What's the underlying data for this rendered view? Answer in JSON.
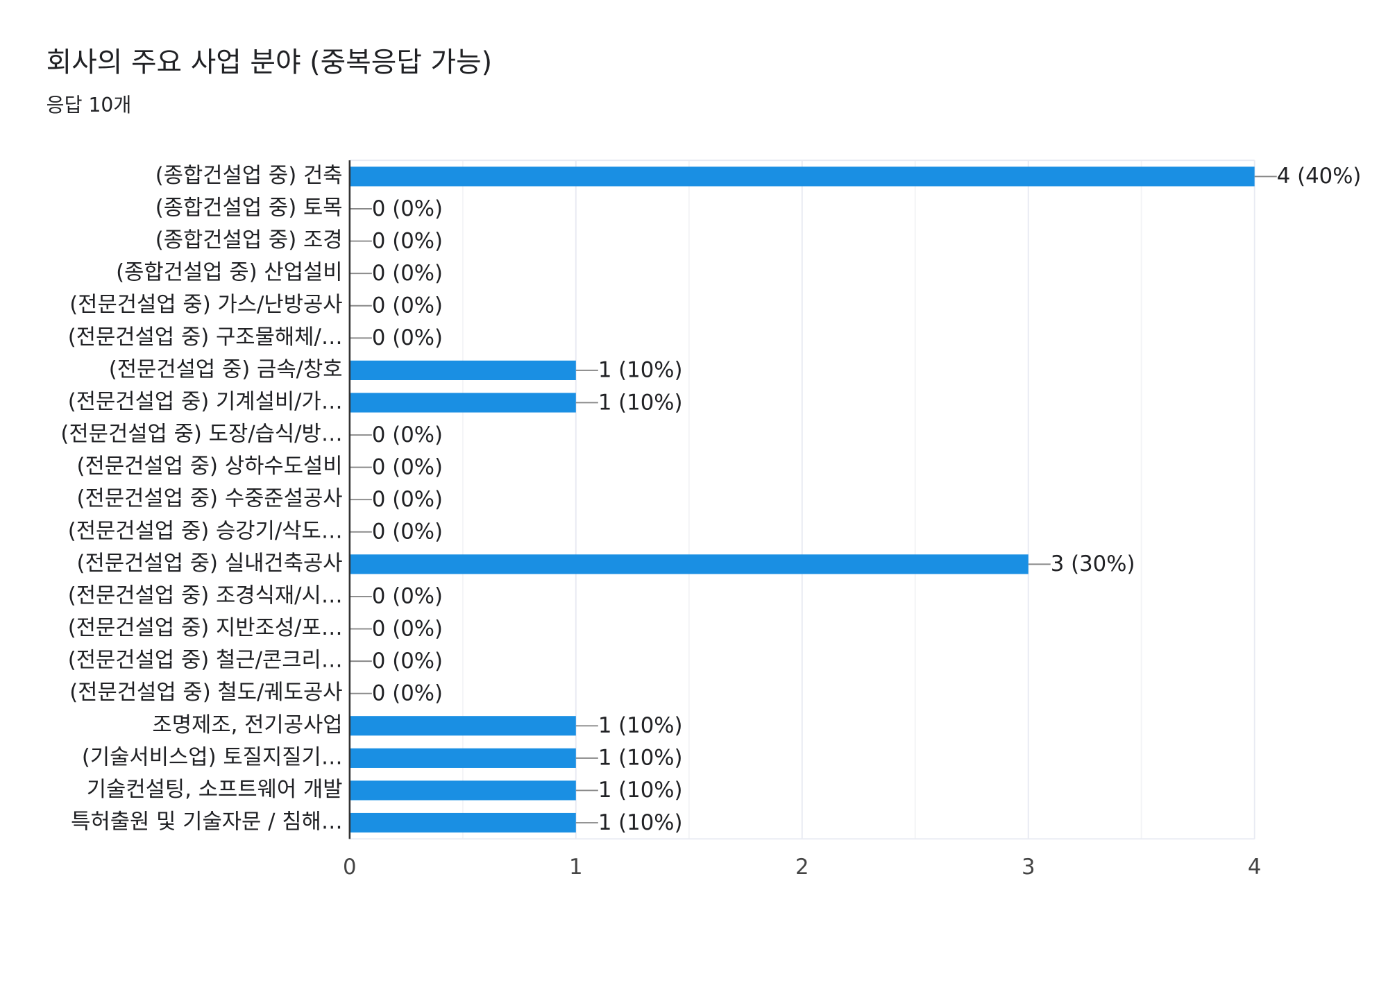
{
  "chart_data": {
    "type": "bar",
    "horizontal": true,
    "title": "회사의 주요 사업 분야 (중복응답 가능)",
    "subtitle": "응답 10개",
    "categories": [
      "(종합건설업 중) 건축",
      "(종합건설업 중) 토목",
      "(종합건설업 중) 조경",
      "(종합건설업 중) 산업설비",
      "(전문건설업 중) 가스/난방공사",
      "(전문건설업 중) 구조물해체/…",
      "(전문건설업 중) 금속/창호",
      "(전문건설업 중) 기계설비/가…",
      "(전문건설업 중) 도장/습식/방…",
      "(전문건설업 중) 상하수도설비",
      "(전문건설업 중) 수중준설공사",
      "(전문건설업 중) 승강기/삭도…",
      "(전문건설업 중) 실내건축공사",
      "(전문건설업 중) 조경식재/시…",
      "(전문건설업 중) 지반조성/포…",
      "(전문건설업 중) 철근/콘크리…",
      "(전문건설업 중) 철도/궤도공사",
      "조명제조, 전기공사업",
      "(기술서비스업) 토질지질기…",
      "기술컨설팅, 소프트웨어 개발",
      "특허출원 및 기술자문 / 침해…"
    ],
    "values": [
      4,
      0,
      0,
      0,
      0,
      0,
      1,
      1,
      0,
      0,
      0,
      0,
      3,
      0,
      0,
      0,
      0,
      1,
      1,
      1,
      1
    ],
    "value_labels": [
      "4 (40%)",
      "0 (0%)",
      "0 (0%)",
      "0 (0%)",
      "0 (0%)",
      "0 (0%)",
      "1 (10%)",
      "1 (10%)",
      "0 (0%)",
      "0 (0%)",
      "0 (0%)",
      "0 (0%)",
      "3 (30%)",
      "0 (0%)",
      "0 (0%)",
      "0 (0%)",
      "0 (0%)",
      "1 (10%)",
      "1 (10%)",
      "1 (10%)",
      "1 (10%)"
    ],
    "color": "#1a8fe3",
    "xlim": [
      0,
      4
    ],
    "xticks": [
      0,
      1,
      2,
      3,
      4
    ],
    "grid": true,
    "minor_grid": true
  }
}
